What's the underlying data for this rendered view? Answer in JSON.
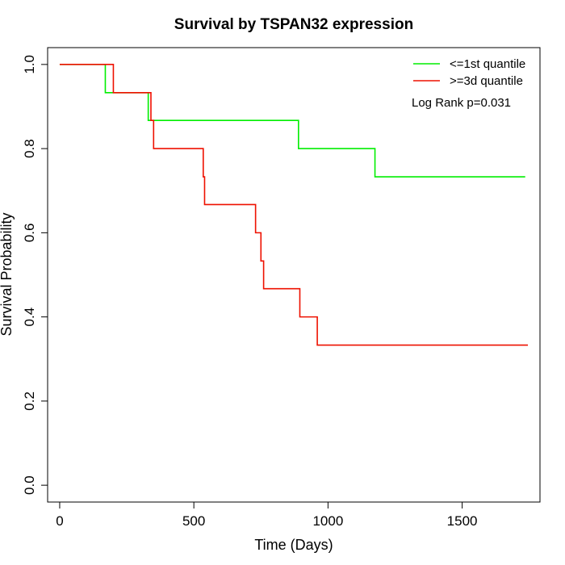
{
  "chart_data": {
    "type": "line",
    "title": "Survival by TSPAN32 expression",
    "xlabel": "Time (Days)",
    "ylabel": "Survival Probability",
    "xlim": [
      -45,
      1790
    ],
    "ylim": [
      -0.04,
      1.04
    ],
    "xticks": [
      0,
      500,
      1000,
      1500
    ],
    "yticks": [
      0.0,
      0.2,
      0.4,
      0.6,
      0.8,
      1.0
    ],
    "xtick_labels": [
      "0",
      "500",
      "1000",
      "1500"
    ],
    "ytick_labels": [
      "0.0",
      "0.2",
      "0.4",
      "0.6",
      "0.8",
      "1.0"
    ],
    "grid": false,
    "legend_position": "top-right",
    "annotation": "Log Rank p=0.031",
    "series": [
      {
        "name": "<=1st quantile",
        "color": "#00ee00",
        "step": true,
        "x": [
          0,
          170,
          200,
          330,
          890,
          1175,
          1735
        ],
        "y": [
          1.0,
          0.933,
          0.933,
          0.867,
          0.8,
          0.733,
          0.733
        ]
      },
      {
        "name": ">=3d quantile",
        "color": "#ee1100",
        "step": true,
        "x": [
          0,
          200,
          340,
          350,
          535,
          540,
          730,
          750,
          760,
          895,
          960,
          1745
        ],
        "y": [
          1.0,
          0.933,
          0.867,
          0.8,
          0.733,
          0.667,
          0.6,
          0.533,
          0.467,
          0.4,
          0.333,
          0.333
        ]
      }
    ]
  }
}
